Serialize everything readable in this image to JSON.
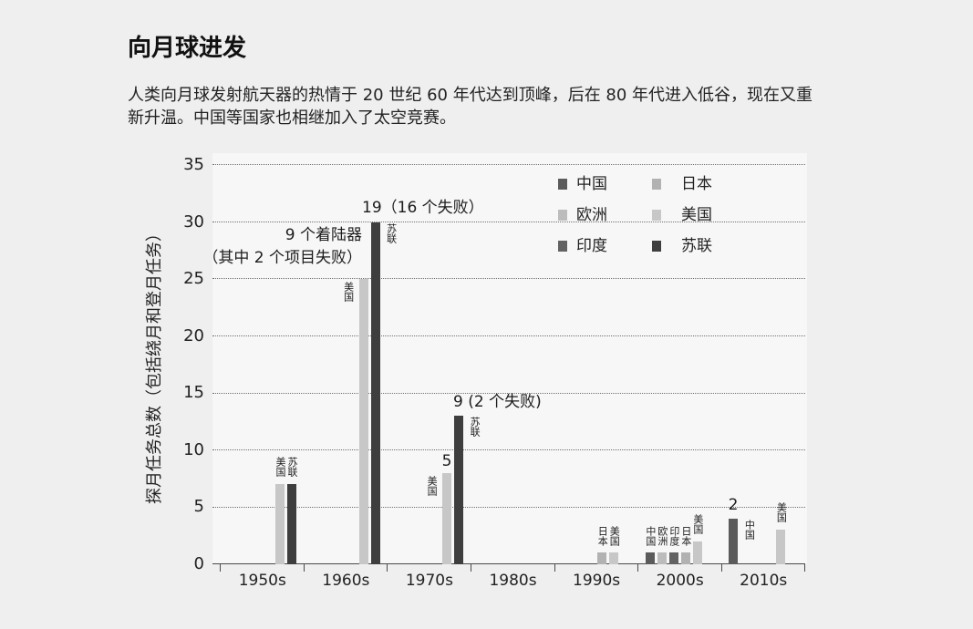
{
  "chart_data": {
    "type": "bar",
    "title": "向月球进发",
    "subtitle": [
      "人类向月球发射航天器的热情于 20 世纪 60 年代达到顶峰，后在 80 年代进入低谷，现在又重",
      "新升温。中国等国家也相继加入了太空竞赛。"
    ],
    "xlabel": "",
    "ylabel": "探月任务总数（包括绕月和登月任务）",
    "ylim": [
      0,
      35
    ],
    "yticks": [
      0,
      5,
      10,
      15,
      20,
      25,
      30,
      35
    ],
    "grid": true,
    "legend": {
      "position": "top-right"
    },
    "categories": [
      "1950s",
      "1960s",
      "1970s",
      "1980s",
      "1990s",
      "2000s",
      "2010s"
    ],
    "series": [
      {
        "name": "中国",
        "color": "#5b5b5b",
        "values": [
          0,
          0,
          0,
          0,
          0,
          1,
          4
        ]
      },
      {
        "name": "欧洲",
        "color": "#bcbcbc",
        "values": [
          0,
          0,
          0,
          0,
          0,
          1,
          0
        ]
      },
      {
        "name": "印度",
        "color": "#626262",
        "values": [
          0,
          0,
          0,
          0,
          0,
          1,
          0
        ]
      },
      {
        "name": "日本",
        "color": "#b2b2b2",
        "values": [
          0,
          0,
          0,
          0,
          1,
          1,
          0
        ]
      },
      {
        "name": "美国",
        "color": "#c7c7c7",
        "values": [
          7,
          25,
          8,
          0,
          1,
          2,
          3
        ]
      },
      {
        "name": "苏联",
        "color": "#3e3e3e",
        "values": [
          7,
          30,
          13,
          0,
          0,
          0,
          0
        ]
      }
    ],
    "annotations": [
      {
        "category_index": 1,
        "series_index": 5,
        "text": "19（16 个失败）"
      },
      {
        "category_index": 1,
        "series_index": 4,
        "lines": [
          "9 个着陆器",
          "（其中 2 个项目失败）"
        ]
      },
      {
        "category_index": 2,
        "series_index": 4,
        "text": "5"
      },
      {
        "category_index": 2,
        "series_index": 5,
        "text": "9 (2 个失败)"
      },
      {
        "category_index": 6,
        "series_index": 0,
        "text": "2"
      }
    ]
  }
}
